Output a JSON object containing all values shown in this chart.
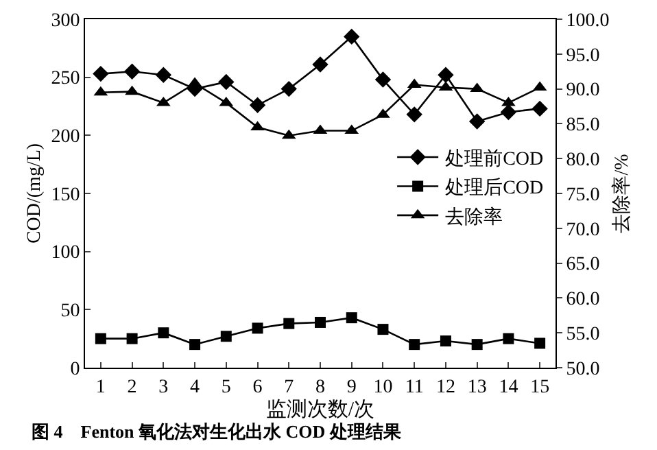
{
  "chart_data": {
    "type": "line",
    "x": [
      1,
      2,
      3,
      4,
      5,
      6,
      7,
      8,
      9,
      10,
      11,
      12,
      13,
      14,
      15
    ],
    "xlim": [
      0.5,
      15.5
    ],
    "xticks": [
      1,
      2,
      3,
      4,
      5,
      6,
      7,
      8,
      9,
      10,
      11,
      12,
      13,
      14,
      15
    ],
    "ylim": [
      0,
      300
    ],
    "yticks": [
      0,
      50,
      100,
      150,
      200,
      250,
      300
    ],
    "y2lim": [
      50,
      100
    ],
    "y2ticks": [
      {
        "value": 50,
        "label": "50.0"
      },
      {
        "value": 55,
        "label": "55.0"
      },
      {
        "value": 60,
        "label": "60.0"
      },
      {
        "value": 65,
        "label": "65.0"
      },
      {
        "value": 70,
        "label": "70.0"
      },
      {
        "value": 75,
        "label": "75.0"
      },
      {
        "value": 80,
        "label": "80.0"
      },
      {
        "value": 85,
        "label": "85.0"
      },
      {
        "value": 90,
        "label": "90.0"
      },
      {
        "value": 95,
        "label": "95.0"
      },
      {
        "value": 100,
        "label": "100.0"
      }
    ],
    "xlabel": "监测次数/次",
    "ylabel": "COD/(mg/L)",
    "y2label": "去除率/%",
    "annotations": [
      "图 4　Fenton 氧化法对生化出水 COD 处理结果"
    ],
    "grid": false,
    "legend": "right",
    "line_style": "solid",
    "series": [
      {
        "name": "处理前COD",
        "color": "#000000",
        "marker": "diamond",
        "values": [
          253,
          255,
          252,
          240,
          246,
          226,
          240,
          261,
          285,
          248,
          218,
          252,
          212,
          220,
          223
        ]
      },
      {
        "name": "处理后COD",
        "color": "#000000",
        "marker": "square",
        "values": [
          25,
          25,
          30,
          20,
          27,
          34,
          38,
          39,
          43,
          33,
          20,
          23,
          20,
          25,
          21
        ]
      },
      {
        "name": "去除率",
        "color": "#000000",
        "marker": "triangle",
        "axis": "y2",
        "values": [
          89.5,
          89.6,
          88,
          90.8,
          88,
          84.5,
          83.3,
          84,
          84,
          86.3,
          90.6,
          90.2,
          90,
          88,
          90.2
        ]
      }
    ]
  }
}
